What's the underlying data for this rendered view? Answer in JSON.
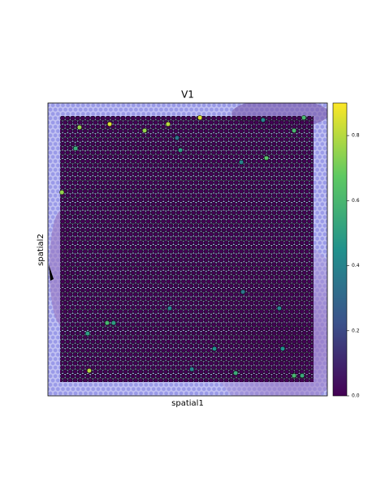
{
  "chart_data": {
    "type": "scatter",
    "title": "V1",
    "xlabel": "spatial1",
    "ylabel": "spatial2",
    "xlim": [
      0,
      100
    ],
    "ylim": [
      0,
      100
    ],
    "x": [
      54.4,
      22.1,
      43.0,
      34.6,
      11.3,
      91.6,
      77.0,
      88.1,
      9.9,
      47.4,
      78.2,
      46.2,
      69.2,
      5.0,
      14.2,
      21.2,
      23.5,
      67.2,
      84.0,
      14.8,
      88.1,
      91.0,
      82.8,
      59.6,
      51.5,
      43.6,
      69.8
    ],
    "y": [
      95.0,
      92.8,
      92.8,
      90.6,
      91.7,
      95.0,
      94.2,
      90.6,
      84.5,
      83.9,
      81.2,
      88.1,
      79.8,
      69.5,
      21.3,
      24.9,
      24.9,
      7.8,
      16.1,
      8.6,
      6.9,
      6.9,
      29.9,
      16.1,
      9.1,
      29.9,
      35.5
    ],
    "values": [
      0.85,
      0.85,
      0.8,
      0.75,
      0.75,
      0.6,
      0.4,
      0.6,
      0.55,
      0.5,
      0.65,
      0.35,
      0.4,
      0.75,
      0.5,
      0.6,
      0.5,
      0.55,
      0.45,
      0.8,
      0.6,
      0.55,
      0.4,
      0.45,
      0.4,
      0.4,
      0.35
    ],
    "colormap": "viridis",
    "colorbar_lim": [
      0,
      0.9
    ],
    "colorbar_ticks": [
      {
        "value": 0,
        "label": "0.0"
      },
      0.2,
      0.4,
      0.6,
      0.8
    ]
  }
}
